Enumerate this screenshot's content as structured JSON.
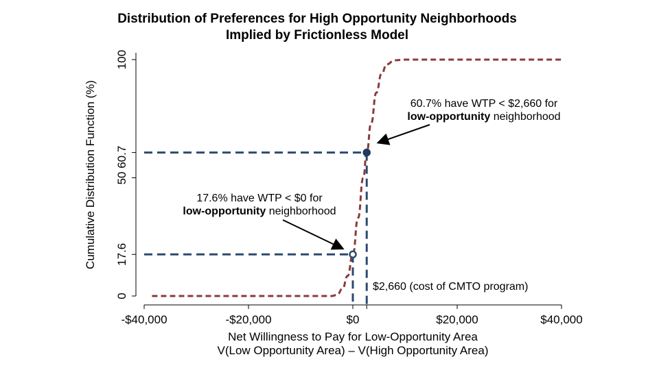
{
  "chart_data": {
    "type": "line",
    "title": [
      "Distribution of Preferences for High Opportunity Neighborhoods",
      "Implied by Frictionless Model"
    ],
    "xlabel": [
      "Net Willingness to Pay for Low-Opportunity Area",
      "V(Low Opportunity Area) – V(High Opportunity Area)"
    ],
    "ylabel": "Cumulative Distribution Function (%)",
    "xlim": [
      -40000,
      40000
    ],
    "ylim": [
      0,
      100
    ],
    "x_ticks": [
      {
        "value": -40000,
        "label": "-$40,000"
      },
      {
        "value": -20000,
        "label": "-$20,000"
      },
      {
        "value": 0,
        "label": "$0"
      },
      {
        "value": 20000,
        "label": "$20,000"
      },
      {
        "value": 40000,
        "label": "$40,000"
      }
    ],
    "y_ticks": [
      {
        "value": 0,
        "label": "0"
      },
      {
        "value": 17.6,
        "label": "17.6"
      },
      {
        "value": 50,
        "label": "50"
      },
      {
        "value": 60.7,
        "label": "60.7"
      },
      {
        "value": 100,
        "label": "100"
      }
    ],
    "series": [
      {
        "color": "#8b3a3a",
        "style": "dashed",
        "points": [
          [
            -38500,
            0
          ],
          [
            -4000,
            0
          ],
          [
            -3000,
            0.5
          ],
          [
            -2000,
            3
          ],
          [
            -1000,
            8.5
          ],
          [
            0,
            17.6
          ],
          [
            1000,
            33
          ],
          [
            2000,
            50
          ],
          [
            2660,
            60.7
          ],
          [
            3500,
            73
          ],
          [
            4500,
            86
          ],
          [
            5500,
            94
          ],
          [
            6500,
            98
          ],
          [
            8000,
            99.7
          ],
          [
            10000,
            100
          ],
          [
            40000,
            100
          ]
        ]
      }
    ],
    "markers": [
      {
        "x": 0,
        "y": 17.6,
        "style": "hollow",
        "color": "#2b4a6e"
      },
      {
        "x": 2660,
        "y": 60.7,
        "style": "filled",
        "color": "#1f3c5e"
      }
    ],
    "reference_lines": [
      {
        "x": 0,
        "y": 17.6,
        "color": "#2b4a6e"
      },
      {
        "x": 2660,
        "y": 60.7,
        "color": "#2b4a6e"
      }
    ],
    "annotations": [
      {
        "lines": [
          [
            {
              "t": "60.7% have WTP < $2,660 for",
              "bold": false
            }
          ],
          [
            {
              "t": "low-opportunity",
              "bold": true
            },
            {
              "t": " neighborhood",
              "bold": false
            }
          ]
        ],
        "target": {
          "x": 2660,
          "y": 60.7
        }
      },
      {
        "lines": [
          [
            {
              "t": "17.6% have WTP < $0 for",
              "bold": false
            }
          ],
          [
            {
              "t": "low-opportunity",
              "bold": true
            },
            {
              "t": " neighborhood",
              "bold": false
            }
          ]
        ],
        "target": {
          "x": 0,
          "y": 17.6
        }
      },
      {
        "lines": [
          [
            {
              "t": "$2,660 (cost of CMTO program)",
              "bold": false
            }
          ]
        ]
      }
    ],
    "grid": false,
    "legend": "none"
  }
}
